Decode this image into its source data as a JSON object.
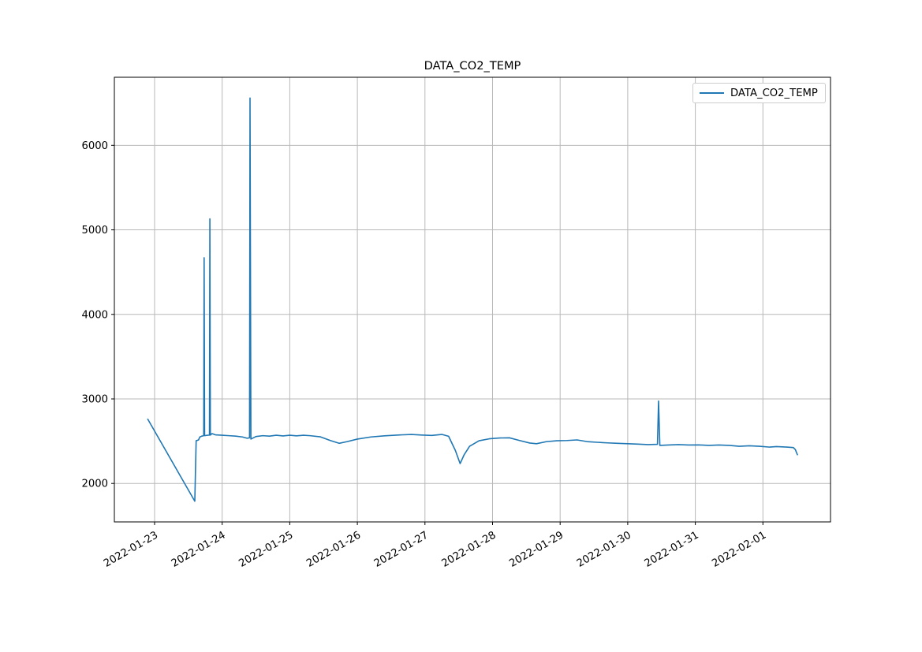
{
  "figure": {
    "background_color": "#ffffff",
    "title": "DATA_CO2_TEMP"
  },
  "legend": {
    "label": "DATA_CO2_TEMP",
    "position": "upper-right",
    "line_color": "#1f77b4",
    "border_color": "#cccccc"
  },
  "chart_data": {
    "type": "line",
    "title": "DATA_CO2_TEMP",
    "xlabel": "",
    "ylabel": "",
    "grid": true,
    "grid_color": "#b8b8b8",
    "spine_color": "#000000",
    "legend": {
      "label": "DATA_CO2_TEMP",
      "position": "upper right"
    },
    "x_tick_labels": [
      "2022-01-23",
      "2022-01-24",
      "2022-01-25",
      "2022-01-26",
      "2022-01-27",
      "2022-01-28",
      "2022-01-29",
      "2022-01-30",
      "2022-01-31",
      "2022-02-01"
    ],
    "x_tick_rotation_deg": 30,
    "y_tick_values": [
      2000,
      3000,
      4000,
      5000,
      6000
    ],
    "x_range_days": [
      -0.595,
      10.0
    ],
    "x_day_zero": "2022-01-23 00:00",
    "ylim": [
      1545,
      6805
    ],
    "series": [
      {
        "name": "DATA_CO2_TEMP",
        "color": "#1f77b4",
        "line_width": 1.6,
        "points_day_value": [
          [
            -0.1,
            2760
          ],
          [
            0.595,
            1790
          ],
          [
            0.615,
            2505
          ],
          [
            0.65,
            2515
          ],
          [
            0.67,
            2550
          ],
          [
            0.7,
            2560
          ],
          [
            0.727,
            2565
          ],
          [
            0.733,
            4670
          ],
          [
            0.74,
            2565
          ],
          [
            0.78,
            2570
          ],
          [
            0.812,
            2572
          ],
          [
            0.818,
            5130
          ],
          [
            0.825,
            2572
          ],
          [
            0.85,
            2590
          ],
          [
            0.9,
            2575
          ],
          [
            1.0,
            2570
          ],
          [
            1.1,
            2565
          ],
          [
            1.2,
            2560
          ],
          [
            1.3,
            2550
          ],
          [
            1.37,
            2535
          ],
          [
            1.405,
            2540
          ],
          [
            1.412,
            6560
          ],
          [
            1.425,
            2525
          ],
          [
            1.5,
            2555
          ],
          [
            1.6,
            2565
          ],
          [
            1.7,
            2560
          ],
          [
            1.8,
            2570
          ],
          [
            1.9,
            2562
          ],
          [
            2.0,
            2570
          ],
          [
            2.1,
            2563
          ],
          [
            2.2,
            2570
          ],
          [
            2.3,
            2565
          ],
          [
            2.45,
            2552
          ],
          [
            2.6,
            2508
          ],
          [
            2.73,
            2475
          ],
          [
            2.85,
            2495
          ],
          [
            3.0,
            2525
          ],
          [
            3.2,
            2550
          ],
          [
            3.4,
            2563
          ],
          [
            3.6,
            2573
          ],
          [
            3.8,
            2580
          ],
          [
            3.95,
            2573
          ],
          [
            4.1,
            2568
          ],
          [
            4.25,
            2580
          ],
          [
            4.35,
            2558
          ],
          [
            4.45,
            2390
          ],
          [
            4.52,
            2235
          ],
          [
            4.58,
            2340
          ],
          [
            4.66,
            2440
          ],
          [
            4.8,
            2505
          ],
          [
            4.95,
            2528
          ],
          [
            5.1,
            2538
          ],
          [
            5.25,
            2540
          ],
          [
            5.4,
            2508
          ],
          [
            5.55,
            2478
          ],
          [
            5.65,
            2470
          ],
          [
            5.8,
            2495
          ],
          [
            5.95,
            2505
          ],
          [
            6.1,
            2508
          ],
          [
            6.25,
            2515
          ],
          [
            6.4,
            2495
          ],
          [
            6.55,
            2487
          ],
          [
            6.7,
            2480
          ],
          [
            6.85,
            2475
          ],
          [
            7.0,
            2470
          ],
          [
            7.15,
            2465
          ],
          [
            7.3,
            2460
          ],
          [
            7.44,
            2463
          ],
          [
            7.456,
            2975
          ],
          [
            7.475,
            2450
          ],
          [
            7.6,
            2455
          ],
          [
            7.75,
            2460
          ],
          [
            7.9,
            2455
          ],
          [
            8.05,
            2456
          ],
          [
            8.2,
            2450
          ],
          [
            8.35,
            2455
          ],
          [
            8.5,
            2450
          ],
          [
            8.65,
            2440
          ],
          [
            8.8,
            2446
          ],
          [
            8.95,
            2440
          ],
          [
            9.1,
            2430
          ],
          [
            9.2,
            2436
          ],
          [
            9.35,
            2430
          ],
          [
            9.45,
            2425
          ],
          [
            9.48,
            2400
          ],
          [
            9.51,
            2340
          ]
        ]
      }
    ]
  }
}
